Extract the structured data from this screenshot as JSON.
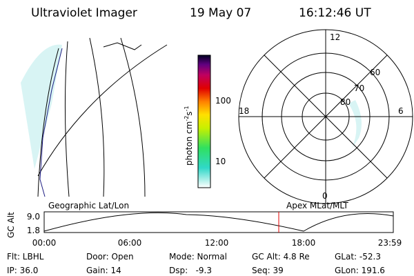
{
  "header": {
    "title": "Ultraviolet Imager",
    "date": "19 May 07",
    "time": "16:12:46 UT"
  },
  "map": {
    "label": "Geographic Lat/Lon"
  },
  "colorbar": {
    "label": [
      "photon cm",
      "-2",
      "s",
      "-1"
    ],
    "ticks": [
      "100",
      "10"
    ]
  },
  "polar": {
    "label": "Apex MLat/MLT",
    "mlt": [
      "12",
      "18",
      "6",
      "0"
    ],
    "mlat": [
      "60",
      "70",
      "80"
    ]
  },
  "orbit": {
    "ylabel": "GC Alt",
    "yticks": [
      "9.0",
      "1.8"
    ],
    "xticks": [
      "00:00",
      "06:00",
      "12:00",
      "18:00",
      "23:59"
    ]
  },
  "info": {
    "rows": [
      [
        "Flt: LBHL",
        "Door: Open",
        "Mode: Normal",
        "GC Alt: 4.8 Re",
        "GLat: -52.3"
      ],
      [
        "IP: 36.0",
        "Gain: 14",
        "Dsp:   -9.3",
        "Seq: 39",
        "GLon: 191.6"
      ]
    ]
  }
}
